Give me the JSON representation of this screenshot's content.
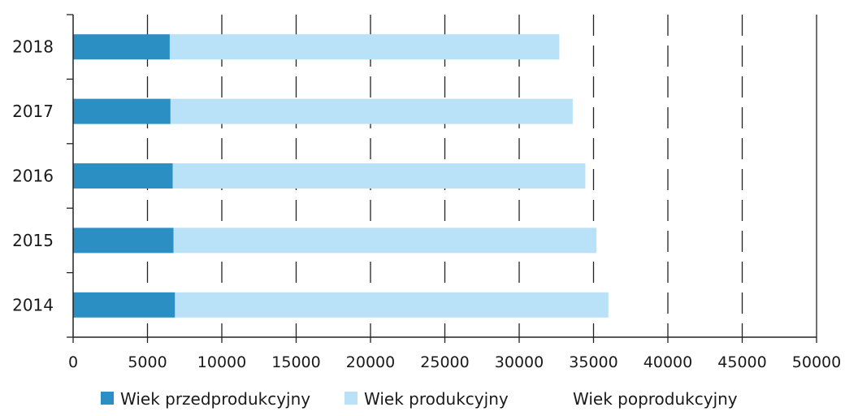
{
  "chart_data": {
    "type": "bar",
    "orientation": "horizontal",
    "stacked": true,
    "categories": [
      "2018",
      "2017",
      "2016",
      "2015",
      "2014"
    ],
    "series": [
      {
        "name": "Wiek przedprodukcyjny",
        "values": [
          6500,
          6550,
          6700,
          6750,
          6850
        ],
        "color": "#2b8fc3"
      },
      {
        "name": "Wiek produkcyjny",
        "values": [
          26200,
          27050,
          27750,
          28450,
          29150
        ],
        "color": "#b9e1f7"
      },
      {
        "name": "Wiek poprodukcyjny",
        "values": [
          0,
          0,
          0,
          0,
          0
        ],
        "color": "#ffffff"
      }
    ],
    "x_ticks": [
      "0",
      "5000",
      "10000",
      "15000",
      "20000",
      "25000",
      "30000",
      "35000",
      "40000",
      "45000",
      "50000"
    ],
    "xlim": [
      0,
      50000
    ],
    "grid": "vertical-dashed",
    "legend_position": "bottom"
  }
}
